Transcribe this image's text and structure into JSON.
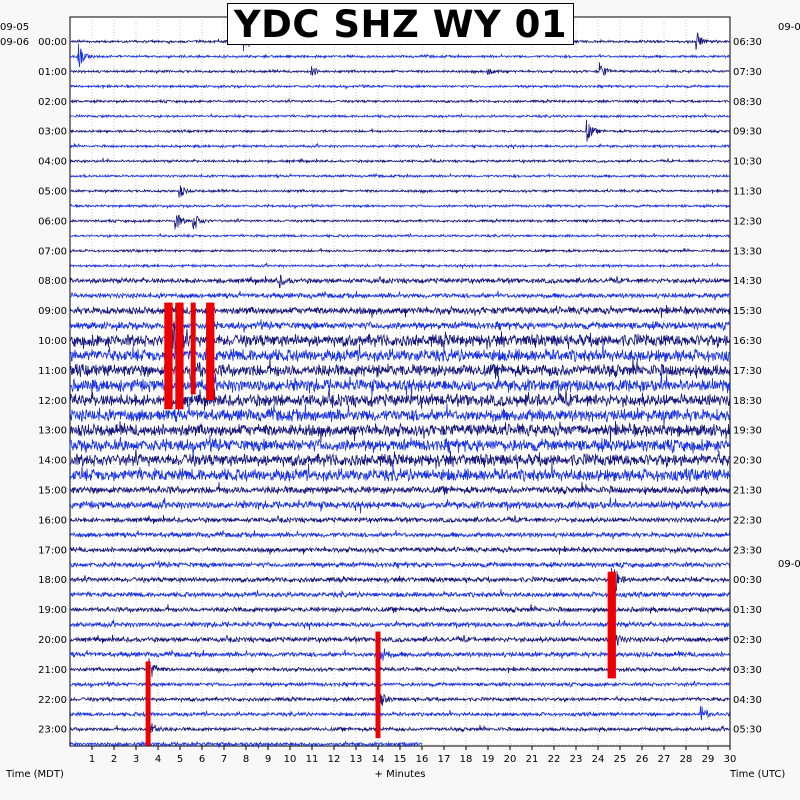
{
  "chart_data": {
    "type": "line",
    "title": "YDC SHZ WY 01",
    "xlabel": "+ Minutes",
    "left_axis_label": "Time (MDT)",
    "right_axis_label": "Time (UTC)",
    "x_ticks": [
      1,
      2,
      3,
      4,
      5,
      6,
      7,
      8,
      9,
      10,
      11,
      12,
      13,
      14,
      15,
      16,
      17,
      18,
      19,
      20,
      21,
      22,
      23,
      24,
      25,
      26,
      27,
      28,
      29,
      30
    ],
    "xlim": [
      0,
      30
    ],
    "left_date_top": "09-05",
    "left_date_second": "09-06",
    "right_date_top": "09-0",
    "right_date_mid": "09-0",
    "left_hour_labels": [
      "00:00",
      "01:00",
      "02:00",
      "03:00",
      "04:00",
      "05:00",
      "06:00",
      "07:00",
      "08:00",
      "09:00",
      "10:00",
      "11:00",
      "12:00",
      "13:00",
      "14:00",
      "15:00",
      "16:00",
      "17:00",
      "18:00",
      "19:00",
      "20:00",
      "21:00",
      "22:00",
      "23:00"
    ],
    "right_hour_labels": [
      "06:30",
      "07:30",
      "08:30",
      "09:30",
      "10:30",
      "11:30",
      "12:30",
      "13:30",
      "14:30",
      "15:30",
      "16:30",
      "17:30",
      "18:30",
      "19:30",
      "20:30",
      "21:30",
      "22:30",
      "23:30",
      "00:30",
      "01:30",
      "02:30",
      "03:30",
      "04:30",
      "05:30"
    ],
    "trace_colors": [
      "#1a1a80",
      "#1a33e6"
    ],
    "clip_color": "#ee0000",
    "grid": true,
    "traces_per_hour": 2,
    "last_trace_end_minutes": 16,
    "noise_levels": [
      1,
      1,
      1,
      1,
      1,
      1,
      1,
      1,
      1,
      1,
      1,
      1,
      1,
      1,
      1,
      1,
      2,
      2,
      3,
      3,
      5,
      5,
      5,
      5,
      5,
      5,
      5,
      5,
      5,
      5,
      3,
      3,
      2,
      2,
      2,
      2,
      2,
      2,
      2,
      2,
      2,
      2,
      1.5,
      1.5,
      1.5,
      1.5,
      1.5,
      1.5
    ],
    "events": [
      {
        "trace": 0,
        "minute": 28.5,
        "amp": 9
      },
      {
        "trace": 0,
        "minute": 7.9,
        "amp": 14
      },
      {
        "trace": 1,
        "minute": 0.4,
        "amp": 12
      },
      {
        "trace": 2,
        "minute": 11,
        "amp": 5
      },
      {
        "trace": 2,
        "minute": 19,
        "amp": 5
      },
      {
        "trace": 2,
        "minute": 24.1,
        "amp": 9
      },
      {
        "trace": 6,
        "minute": 23.5,
        "amp": 11
      },
      {
        "trace": 10,
        "minute": 5,
        "amp": 6
      },
      {
        "trace": 12,
        "minute": 4.8,
        "amp": 10
      },
      {
        "trace": 12,
        "minute": 5.6,
        "amp": 12
      },
      {
        "trace": 16,
        "minute": 9.5,
        "amp": 6
      },
      {
        "trace": 20,
        "minute": 4.6,
        "amp": 30
      },
      {
        "trace": 22,
        "minute": 5.5,
        "amp": 20
      },
      {
        "trace": 36,
        "minute": 24.6,
        "amp": 30
      },
      {
        "trace": 40,
        "minute": 24.6,
        "amp": 20
      },
      {
        "trace": 41,
        "minute": 14,
        "amp": 18
      },
      {
        "trace": 42,
        "minute": 3.6,
        "amp": 14
      },
      {
        "trace": 44,
        "minute": 14,
        "amp": 12
      },
      {
        "trace": 46,
        "minute": 3.6,
        "amp": 14
      },
      {
        "trace": 45,
        "minute": 28.7,
        "amp": 8
      }
    ],
    "clip_bars": [
      {
        "minute": 4.4,
        "from_hour": 9.0,
        "to_hour": 12.3
      },
      {
        "minute": 4.55,
        "from_hour": 9.0,
        "to_hour": 12.3
      },
      {
        "minute": 4.9,
        "from_hour": 9.0,
        "to_hour": 12.3
      },
      {
        "minute": 5.05,
        "from_hour": 9.0,
        "to_hour": 12.3
      },
      {
        "minute": 5.6,
        "from_hour": 9.0,
        "to_hour": 11.8
      },
      {
        "minute": 6.3,
        "from_hour": 9.0,
        "to_hour": 12.0
      },
      {
        "minute": 6.45,
        "from_hour": 9.0,
        "to_hour": 12.0
      },
      {
        "minute": 24.55,
        "from_hour": 18.0,
        "to_hour": 21.3
      },
      {
        "minute": 24.7,
        "from_hour": 18.0,
        "to_hour": 21.3
      },
      {
        "minute": 3.55,
        "from_hour": 21.0,
        "to_hour": 23.55
      },
      {
        "minute": 14.0,
        "from_hour": 20.0,
        "to_hour": 23.3
      }
    ]
  }
}
